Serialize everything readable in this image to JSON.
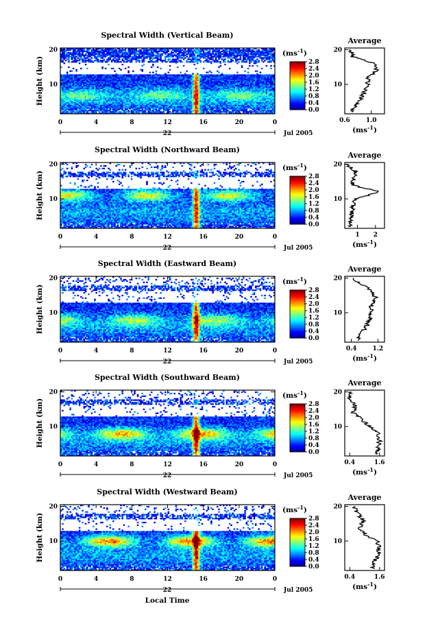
{
  "figure": {
    "xlabel": "Local Time",
    "date_label": "Jul 2005",
    "day_label": "22",
    "time_ticks": [
      "0",
      "4",
      "8",
      "12",
      "16",
      "20",
      "0"
    ],
    "height_ticks": [
      "10",
      "20"
    ],
    "ylabel": "Height (km)",
    "cbar_unit": "(ms",
    "cbar_unit_exp": "-1",
    "cbar_ticks": [
      "0.0",
      "0.4",
      "0.8",
      "1.2",
      "1.6",
      "2.0",
      "2.4",
      "2.8"
    ],
    "avg_title": "Average",
    "avg_xlabel": "(ms",
    "avg_xlabel_exp": "-1",
    "colorscale": [
      "#00008f",
      "#0000ff",
      "#0080ff",
      "#00ffff",
      "#80ff80",
      "#ffff00",
      "#ff8000",
      "#ff0000",
      "#800000"
    ],
    "panels": [
      {
        "title": "Spectral Width (Vertical Beam)",
        "avg_ticks": [
          "0.6",
          "1.0"
        ]
      },
      {
        "title": "Spectral Width (Northward Beam)",
        "avg_ticks": [
          "1",
          "2"
        ]
      },
      {
        "title": "Spectral Width (Eastward Beam)",
        "avg_ticks": [
          "0.4",
          "1.2"
        ]
      },
      {
        "title": "Spectral Width (Southward Beam)",
        "avg_ticks": [
          "0.4",
          "1.6"
        ]
      },
      {
        "title": "Spectral Width (Westward Beam)",
        "avg_ticks": [
          "0.4",
          "1.6"
        ]
      }
    ]
  },
  "chart_data": [
    {
      "type": "heatmap",
      "title": "Spectral Width (Vertical Beam)",
      "xlabel": "Local Time",
      "ylabel": "Height (km)",
      "xlim": [
        0,
        24
      ],
      "ylim": [
        1.5,
        20.5
      ],
      "zlim": [
        0.0,
        2.8
      ],
      "zunit": "ms-1",
      "average_profile": {
        "xlabel": "(ms-1)",
        "xlim": [
          0.6,
          1.2
        ],
        "xticks": [
          0.6,
          1.0
        ],
        "height": [
          2,
          4,
          6,
          8,
          10,
          12,
          14,
          16,
          18,
          20
        ],
        "value": [
          0.7,
          0.78,
          0.85,
          0.9,
          0.95,
          0.95,
          1.08,
          1.05,
          0.72,
          0.68
        ]
      }
    },
    {
      "type": "heatmap",
      "title": "Spectral Width (Northward Beam)",
      "xlabel": "Local Time",
      "ylabel": "Height (km)",
      "xlim": [
        0,
        24
      ],
      "ylim": [
        1.5,
        20.5
      ],
      "zlim": [
        0.0,
        2.8
      ],
      "zunit": "ms-1",
      "average_profile": {
        "xlabel": "(ms-1)",
        "xlim": [
          0.3,
          2.5
        ],
        "xticks": [
          1,
          2
        ],
        "height": [
          2,
          4,
          6,
          8,
          10,
          12,
          14,
          16,
          18,
          20
        ],
        "value": [
          0.6,
          0.65,
          0.7,
          0.75,
          0.9,
          2.2,
          0.7,
          0.8,
          0.9,
          0.4
        ]
      }
    },
    {
      "type": "heatmap",
      "title": "Spectral Width (Eastward Beam)",
      "xlabel": "Local Time",
      "ylabel": "Height (km)",
      "xlim": [
        0,
        24
      ],
      "ylim": [
        1.5,
        20.5
      ],
      "zlim": [
        0.0,
        2.8
      ],
      "zunit": "ms-1",
      "average_profile": {
        "xlabel": "(ms-1)",
        "xlim": [
          0.2,
          1.4
        ],
        "xticks": [
          0.4,
          1.2
        ],
        "height": [
          2,
          4,
          6,
          8,
          10,
          12,
          14,
          16,
          18,
          20
        ],
        "value": [
          0.55,
          0.7,
          0.85,
          0.95,
          1.0,
          1.0,
          1.15,
          1.05,
          0.75,
          0.45
        ]
      }
    },
    {
      "type": "heatmap",
      "title": "Spectral Width (Southward Beam)",
      "xlabel": "Local Time",
      "ylabel": "Height (km)",
      "xlim": [
        0,
        24
      ],
      "ylim": [
        1.5,
        20.5
      ],
      "zlim": [
        0.0,
        2.8
      ],
      "zunit": "ms-1",
      "average_profile": {
        "xlabel": "(ms-1)",
        "xlim": [
          0.2,
          1.8
        ],
        "xticks": [
          0.4,
          1.6
        ],
        "height": [
          2,
          4,
          6,
          8,
          10,
          12,
          14,
          16,
          18,
          20
        ],
        "value": [
          1.45,
          1.55,
          1.6,
          1.55,
          1.2,
          0.9,
          0.55,
          0.6,
          0.4,
          0.4
        ]
      }
    },
    {
      "type": "heatmap",
      "title": "Spectral Width (Westward Beam)",
      "xlabel": "Local Time",
      "ylabel": "Height (km)",
      "xlim": [
        0,
        24
      ],
      "ylim": [
        1.5,
        20.5
      ],
      "zlim": [
        0.0,
        2.8
      ],
      "zunit": "ms-1",
      "average_profile": {
        "xlabel": "(ms-1)",
        "xlim": [
          0.2,
          1.8
        ],
        "xticks": [
          0.4,
          1.6
        ],
        "height": [
          2,
          4,
          6,
          8,
          10,
          12,
          14,
          16,
          18,
          20
        ],
        "value": [
          1.3,
          1.4,
          1.55,
          1.6,
          1.5,
          1.0,
          0.8,
          0.95,
          0.7,
          0.6
        ]
      }
    }
  ]
}
